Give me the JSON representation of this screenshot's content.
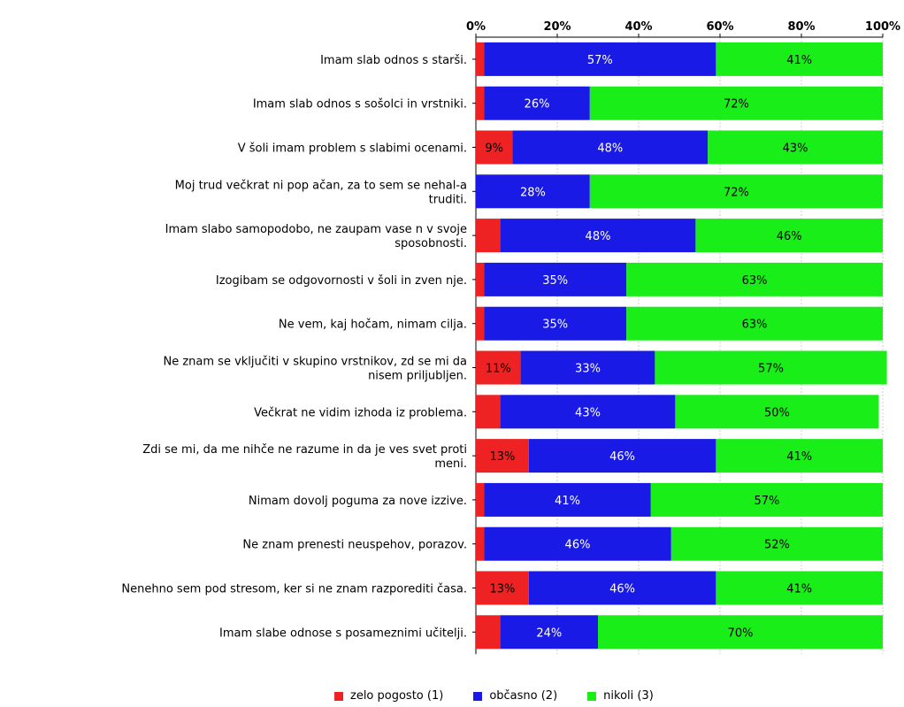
{
  "colors": {
    "series1": "#ee2222",
    "series2": "#1a1ae6",
    "series3": "#19ee19",
    "grid": "#cccccc",
    "axis": "#000000"
  },
  "chart_data": {
    "type": "bar",
    "orientation": "horizontal",
    "stacked": true,
    "percent": true,
    "xlim": [
      0,
      100
    ],
    "xticks": [
      "0%",
      "20%",
      "40%",
      "60%",
      "80%",
      "100%"
    ],
    "legend_position": "bottom",
    "categories": [
      [
        "Imam slab odnos s starši."
      ],
      [
        "Imam slab odnos s sošolci in vrstniki."
      ],
      [
        "V šoli imam problem s slabimi ocenami."
      ],
      [
        "Moj trud večkrat ni pop ačan, za to sem se nehal-a",
        "truditi."
      ],
      [
        "Imam slabo samopodobo, ne zaupam vase n v svoje",
        "sposobnosti."
      ],
      [
        "Izogibam se odgovornosti v šoli in zven nje."
      ],
      [
        "Ne vem, kaj hočam, nimam cilja."
      ],
      [
        "Ne znam se vključiti v skupino vrstnikov, zd se mi da",
        "nisem priljubljen."
      ],
      [
        "Večkrat ne vidim izhoda iz problema."
      ],
      [
        "Zdi se mi, da me nihče ne razume in da je ves svet proti",
        "meni."
      ],
      [
        "Nimam dovolj poguma za nove izzive."
      ],
      [
        "Ne znam prenesti neuspehov, porazov."
      ],
      [
        "Nenehno sem pod stresom, ker si ne znam razporediti časa."
      ],
      [
        "Imam slabe odnose s posameznimi učitelji."
      ]
    ],
    "series": [
      {
        "name": "zelo pogosto (1)",
        "color": "#ee2222",
        "values": [
          2,
          2,
          9,
          0,
          6,
          2,
          2,
          11,
          6,
          13,
          2,
          2,
          13,
          6
        ],
        "labels": [
          "",
          "",
          "9%",
          "",
          "",
          "",
          "",
          "11%",
          "",
          "13%",
          "",
          "",
          "13%",
          ""
        ]
      },
      {
        "name": "občasno (2)",
        "color": "#1a1ae6",
        "values": [
          57,
          26,
          48,
          28,
          48,
          35,
          35,
          33,
          43,
          46,
          41,
          46,
          46,
          24
        ],
        "labels": [
          "57%",
          "26%",
          "48%",
          "28%",
          "48%",
          "35%",
          "35%",
          "33%",
          "43%",
          "46%",
          "41%",
          "46%",
          "46%",
          "24%"
        ]
      },
      {
        "name": "nikoli (3)",
        "color": "#19ee19",
        "values": [
          41,
          72,
          43,
          72,
          46,
          63,
          63,
          57,
          50,
          41,
          57,
          52,
          41,
          70
        ],
        "labels": [
          "41%",
          "72%",
          "43%",
          "72%",
          "46%",
          "63%",
          "63%",
          "57%",
          "50%",
          "41%",
          "57%",
          "52%",
          "41%",
          "70%"
        ]
      }
    ]
  }
}
